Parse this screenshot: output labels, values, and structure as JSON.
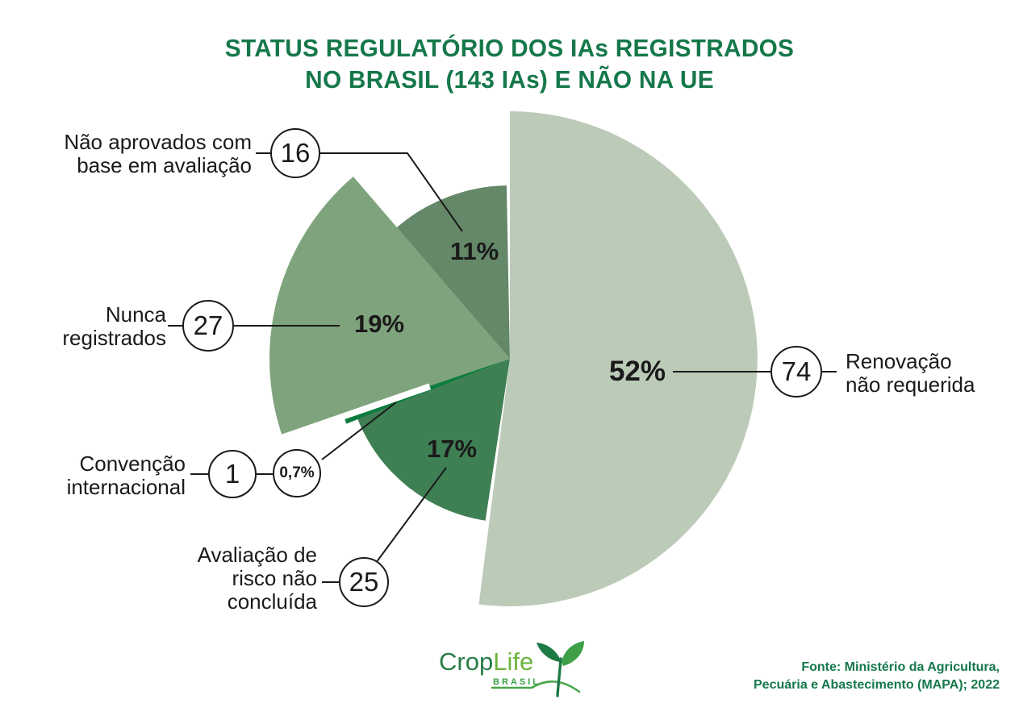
{
  "title": {
    "lines": [
      "STATUS REGULATÓRIO DOS IAs REGISTRADOS",
      "NO BRASIL (143 IAs) E NÃO NA UE"
    ]
  },
  "chart_data": {
    "type": "pie",
    "title": "STATUS REGULATÓRIO DOS IAs REGISTRADOS NO BRASIL (143 IAs) E NÃO NA UE",
    "total_units": "143 IAs",
    "start_angle_deg": 0,
    "direction": "clockwise",
    "slices": [
      {
        "label": "Renovação não requerida",
        "label_lines": [
          "Renovação",
          "não requerida"
        ],
        "count": 74,
        "pct": 52,
        "pct_label": "52%",
        "color": "#bccbb8",
        "radius": 307
      },
      {
        "label": "Avaliação de risco não concluída",
        "label_lines": [
          "Avaliação de",
          "risco não",
          "concluída"
        ],
        "count": 25,
        "pct": 17,
        "pct_label": "17%",
        "color": "#3f7f54",
        "radius": 203
      },
      {
        "label": "Convenção internacional",
        "label_lines": [
          "Convenção",
          "internacional"
        ],
        "count": 1,
        "pct": 0.7,
        "pct_label": "0,7%",
        "color": "#0a7c3e",
        "radius": 218
      },
      {
        "label": "Nunca registrados",
        "label_lines": [
          "Nunca",
          "registrados"
        ],
        "count": 27,
        "pct": 19,
        "pct_label": "19%",
        "color": "#7fa37d",
        "radius": 298
      },
      {
        "label": "Não aprovados com base em avaliação",
        "label_lines": [
          "Não aprovados com",
          "base em avaliação"
        ],
        "count": 16,
        "pct": 11,
        "pct_label": "11%",
        "color": "#648868",
        "radius": 215
      }
    ]
  },
  "footer": {
    "source_lines": [
      "Fonte: Ministério da Agricultura,",
      "Pecuária e Abastecimento (MAPA); 2022"
    ]
  },
  "logo": {
    "part1": "Crop",
    "part2": "Life",
    "subtitle": "BRASIL"
  },
  "colors": {
    "title_green": "#15784a",
    "text_black": "#1a1a1a",
    "line_black": "#1a1a1a",
    "logo_dark_green": "#287d46",
    "logo_light_green": "#6db33f",
    "logo_brasil_green": "#37a046"
  }
}
